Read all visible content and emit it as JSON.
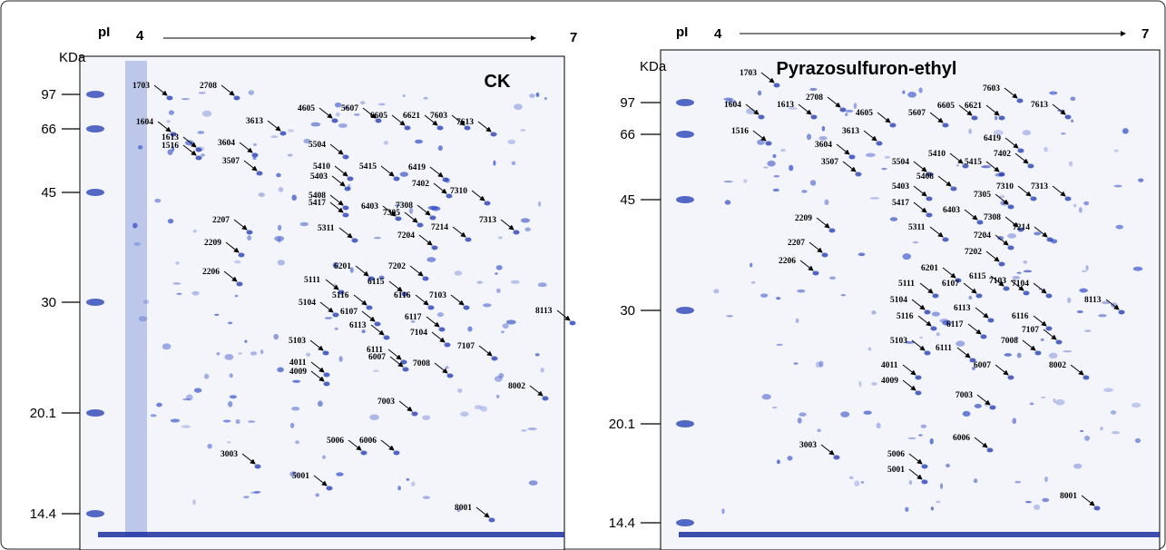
{
  "panels": [
    {
      "title": "CK",
      "pi_label": "pI",
      "pi_start": "4",
      "pi_end": "7",
      "mw_unit": "KDa",
      "mw_markers": [
        "97",
        "66",
        "45",
        "30",
        "20.1",
        "14.4"
      ],
      "spots": [
        "1703",
        "2708",
        "1604",
        "1613",
        "1516",
        "3613",
        "3604",
        "3507",
        "4605",
        "5607",
        "6605",
        "6621",
        "7603",
        "7613",
        "5504",
        "5410",
        "5415",
        "5403",
        "6419",
        "7402",
        "5408",
        "5417",
        "6403",
        "7308",
        "7305",
        "7310",
        "7313",
        "7214",
        "5311",
        "2207",
        "2209",
        "2206",
        "7204",
        "6201",
        "7202",
        "5111",
        "6115",
        "5116",
        "6116",
        "7103",
        "5104",
        "6107",
        "6117",
        "6113",
        "7104",
        "5103",
        "6111",
        "6007",
        "7107",
        "8113",
        "4011",
        "4009",
        "7008",
        "7003",
        "8002",
        "3003",
        "5006",
        "6006",
        "5001",
        "8001"
      ]
    },
    {
      "title": "Pyrazosulfuron-ethyl",
      "pi_label": "pI",
      "pi_start": "4",
      "pi_end": "7",
      "mw_unit": "KDa",
      "mw_markers": [
        "97",
        "66",
        "45",
        "30",
        "20.1",
        "14.4"
      ],
      "spots": [
        "1703",
        "1604",
        "1613",
        "2708",
        "1516",
        "3613",
        "3604",
        "3507",
        "4605",
        "5607",
        "6605",
        "6621",
        "7603",
        "7613",
        "6419",
        "5504",
        "5410",
        "5415",
        "7402",
        "5408",
        "7310",
        "7305",
        "7313",
        "5403",
        "5417",
        "6403",
        "7308",
        "5311",
        "2209",
        "2207",
        "2206",
        "7214",
        "7204",
        "7202",
        "6201",
        "5111",
        "6107",
        "6115",
        "7103",
        "7104",
        "8113",
        "5104",
        "5116",
        "6113",
        "6116",
        "6117",
        "7107",
        "5103",
        "6111",
        "7008",
        "6007",
        "8002",
        "4011",
        "4009",
        "7003",
        "3003",
        "5006",
        "6006",
        "5001",
        "8001"
      ]
    }
  ]
}
